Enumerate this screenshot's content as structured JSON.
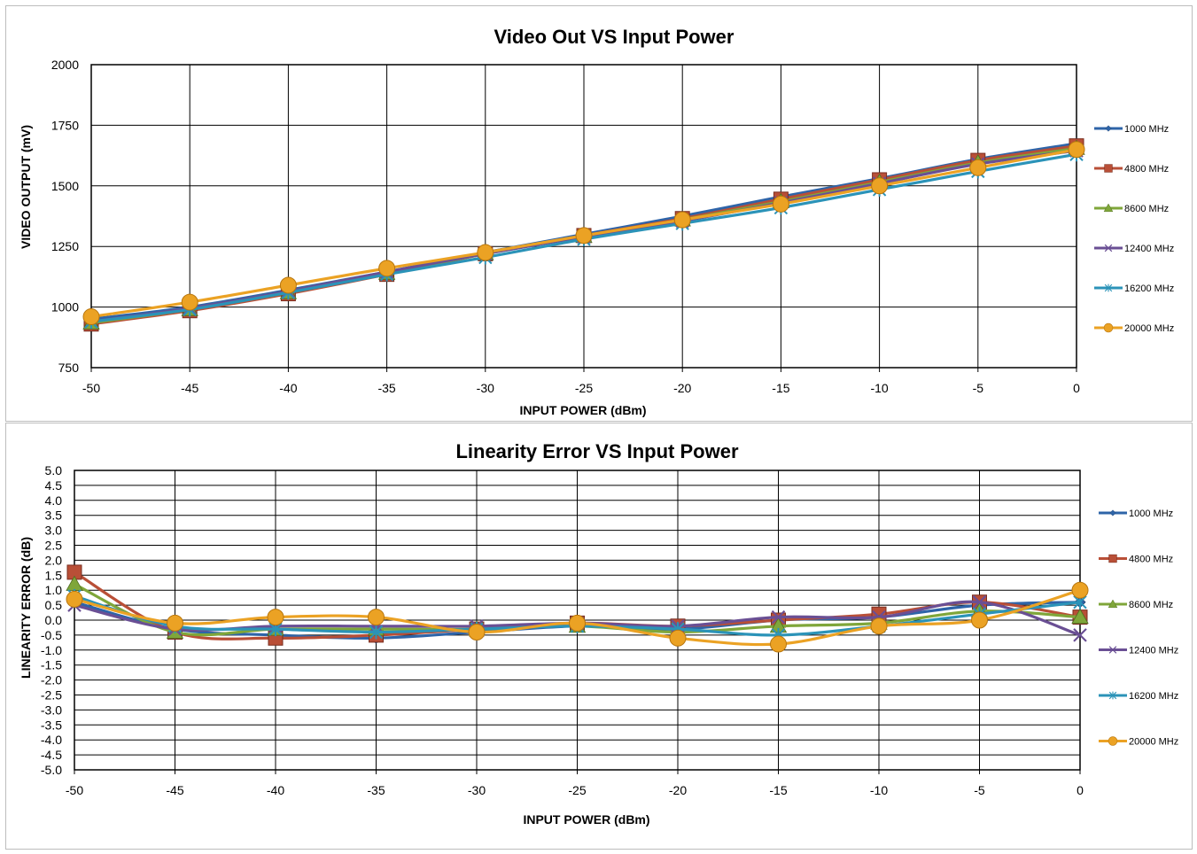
{
  "chart_data": [
    {
      "type": "line",
      "title": "Video Out VS Input Power",
      "xlabel": "INPUT POWER (dBm)",
      "ylabel": "VIDEO OUTPUT (mV)",
      "xlim": [
        -50,
        0
      ],
      "ylim": [
        750,
        2000
      ],
      "xticks": [
        "-50",
        "-45",
        "-40",
        "-35",
        "-30",
        "-25",
        "-20",
        "-15",
        "-10",
        "-5",
        "0"
      ],
      "yticks": [
        "750",
        "1000",
        "1250",
        "1500",
        "1750",
        "2000"
      ],
      "grid": true,
      "legend_position": "right",
      "x": [
        -50,
        -45,
        -40,
        -35,
        -30,
        -25,
        -20,
        -15,
        -10,
        -5,
        0
      ],
      "series": [
        {
          "name": "1000 MHz",
          "color": "#2e64a8",
          "marker": "diamond",
          "values": [
            950,
            1000,
            1070,
            1145,
            1225,
            1300,
            1375,
            1455,
            1530,
            1610,
            1675
          ]
        },
        {
          "name": "4800 MHz",
          "color": "#b94f37",
          "marker": "square",
          "values": [
            930,
            985,
            1055,
            1135,
            1220,
            1295,
            1365,
            1445,
            1525,
            1605,
            1665
          ]
        },
        {
          "name": "8600 MHz",
          "color": "#7fa63a",
          "marker": "triangle",
          "values": [
            935,
            990,
            1060,
            1140,
            1220,
            1292,
            1360,
            1435,
            1515,
            1595,
            1655
          ]
        },
        {
          "name": "12400 MHz",
          "color": "#6a4f94",
          "marker": "x",
          "values": [
            940,
            995,
            1065,
            1145,
            1220,
            1290,
            1355,
            1430,
            1510,
            1590,
            1645
          ]
        },
        {
          "name": "16200 MHz",
          "color": "#2b93b8",
          "marker": "asterisk",
          "values": [
            940,
            990,
            1060,
            1135,
            1205,
            1280,
            1345,
            1410,
            1485,
            1560,
            1630
          ]
        },
        {
          "name": "20000 MHz",
          "color": "#eba224",
          "marker": "circle",
          "values": [
            960,
            1020,
            1090,
            1160,
            1225,
            1295,
            1360,
            1425,
            1500,
            1575,
            1650
          ]
        }
      ]
    },
    {
      "type": "line",
      "title": "Linearity Error VS Input Power",
      "xlabel": "INPUT POWER (dBm)",
      "ylabel": "LINEARITY ERROR (dB)",
      "xlim": [
        -50,
        0
      ],
      "ylim": [
        -5.0,
        5.0
      ],
      "xticks": [
        "-50",
        "-45",
        "-40",
        "-35",
        "-30",
        "-25",
        "-20",
        "-15",
        "-10",
        "-5",
        "0"
      ],
      "yticks": [
        "-5.0",
        "-4.5",
        "-4.0",
        "-3.5",
        "-3.0",
        "-2.5",
        "-2.0",
        "-1.5",
        "-1.0",
        "-0.5",
        "0.0",
        "0.5",
        "1.0",
        "1.5",
        "2.0",
        "2.5",
        "3.0",
        "3.5",
        "4.0",
        "4.5",
        "5.0"
      ],
      "grid": true,
      "legend_position": "right",
      "x": [
        -50,
        -45,
        -40,
        -35,
        -30,
        -25,
        -20,
        -15,
        -10,
        -5,
        0
      ],
      "series": [
        {
          "name": "1000 MHz",
          "color": "#2e64a8",
          "marker": "diamond",
          "values": [
            0.6,
            -0.3,
            -0.5,
            -0.6,
            -0.4,
            -0.2,
            -0.3,
            0.0,
            0.1,
            0.5,
            0.6
          ]
        },
        {
          "name": "4800 MHz",
          "color": "#b94f37",
          "marker": "square",
          "values": [
            1.6,
            -0.4,
            -0.6,
            -0.5,
            -0.3,
            -0.1,
            -0.2,
            0.0,
            0.2,
            0.6,
            0.1
          ]
        },
        {
          "name": "8600 MHz",
          "color": "#7fa63a",
          "marker": "triangle",
          "values": [
            1.2,
            -0.4,
            -0.3,
            -0.3,
            -0.3,
            -0.2,
            -0.4,
            -0.2,
            -0.1,
            0.3,
            0.1
          ]
        },
        {
          "name": "12400 MHz",
          "color": "#6a4f94",
          "marker": "x",
          "values": [
            0.5,
            -0.3,
            -0.2,
            -0.2,
            -0.2,
            -0.1,
            -0.2,
            0.1,
            0.1,
            0.6,
            -0.5
          ]
        },
        {
          "name": "16200 MHz",
          "color": "#2b93b8",
          "marker": "asterisk",
          "values": [
            0.8,
            -0.2,
            -0.3,
            -0.4,
            -0.3,
            -0.2,
            -0.3,
            -0.5,
            -0.2,
            0.2,
            0.6
          ]
        },
        {
          "name": "20000 MHz",
          "color": "#eba224",
          "marker": "circle",
          "values": [
            0.7,
            -0.1,
            0.1,
            0.1,
            -0.4,
            -0.1,
            -0.6,
            -0.8,
            -0.2,
            0.0,
            1.0
          ]
        }
      ]
    }
  ]
}
